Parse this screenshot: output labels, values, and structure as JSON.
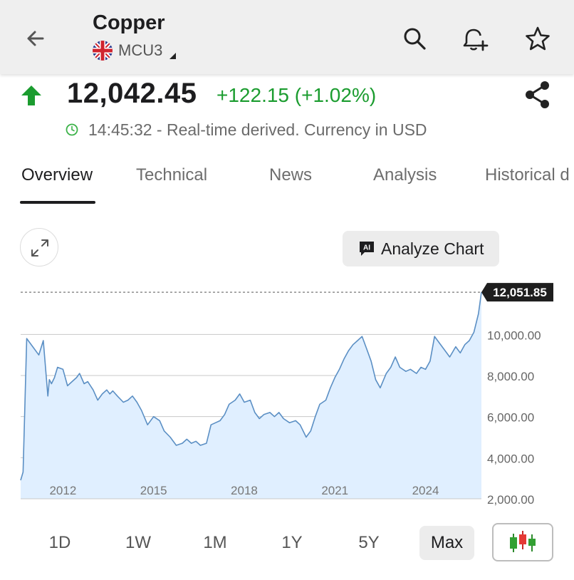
{
  "header": {
    "title": "Copper",
    "symbol": "MCU3"
  },
  "quote": {
    "price": "12,042.45",
    "change": "+122.15 (+1.02%)",
    "status": "14:45:32 - Real-time derived. Currency in USD",
    "direction": "up",
    "up_color": "#1b9c2f"
  },
  "tabs": [
    {
      "label": "Overview",
      "active": true
    },
    {
      "label": "Technical",
      "active": false
    },
    {
      "label": "News",
      "active": false
    },
    {
      "label": "Analysis",
      "active": false
    },
    {
      "label": "Historical d",
      "active": false
    }
  ],
  "chart_tools": {
    "analyze_label": "Analyze Chart",
    "ai_badge": "AI"
  },
  "chart_data": {
    "type": "area",
    "current_value_label": "12,051.85",
    "current_value": 12051.85,
    "ylim": [
      2000,
      12300
    ],
    "y_ticks": [
      10000,
      8000,
      6000,
      4000,
      2000
    ],
    "y_tick_labels": [
      "10,000.00",
      "8,000.00",
      "6,000.00",
      "4,000.00",
      "2,000.00"
    ],
    "x_ticks": [
      2012,
      2015,
      2018,
      2021,
      2024
    ],
    "x_tick_labels": [
      "2012",
      "2015",
      "2018",
      "2021",
      "2024"
    ],
    "xlim": [
      2010.6,
      2025.85
    ],
    "grid": true,
    "line_color": "#5b8fc4",
    "fill_color": "#e0efff",
    "x": [
      2010.6,
      2010.68,
      2010.8,
      2011.0,
      2011.2,
      2011.35,
      2011.5,
      2011.55,
      2011.62,
      2011.72,
      2011.82,
      2012.0,
      2012.15,
      2012.3,
      2012.45,
      2012.55,
      2012.7,
      2012.82,
      2013.0,
      2013.15,
      2013.3,
      2013.45,
      2013.55,
      2013.65,
      2013.8,
      2014.0,
      2014.15,
      2014.3,
      2014.45,
      2014.6,
      2014.8,
      2015.0,
      2015.2,
      2015.35,
      2015.55,
      2015.75,
      2015.95,
      2016.1,
      2016.25,
      2016.4,
      2016.55,
      2016.75,
      2016.9,
      2017.05,
      2017.2,
      2017.35,
      2017.5,
      2017.7,
      2017.85,
      2018.0,
      2018.2,
      2018.35,
      2018.5,
      2018.65,
      2018.85,
      2019.0,
      2019.15,
      2019.3,
      2019.5,
      2019.7,
      2019.85,
      2020.05,
      2020.2,
      2020.35,
      2020.5,
      2020.7,
      2020.85,
      2021.0,
      2021.15,
      2021.3,
      2021.45,
      2021.6,
      2021.75,
      2021.9,
      2022.05,
      2022.2,
      2022.35,
      2022.5,
      2022.7,
      2022.85,
      2023.0,
      2023.15,
      2023.35,
      2023.5,
      2023.7,
      2023.85,
      2024.0,
      2024.15,
      2024.3,
      2024.45,
      2024.6,
      2024.8,
      2025.0,
      2025.15,
      2025.3,
      2025.45,
      2025.6,
      2025.75,
      2025.85
    ],
    "y": [
      2900,
      3300,
      9800,
      9400,
      9000,
      9700,
      7000,
      7800,
      7600,
      7900,
      8400,
      8300,
      7500,
      7700,
      7900,
      8100,
      7600,
      7700,
      7300,
      6800,
      7100,
      7300,
      7100,
      7250,
      7000,
      6700,
      6800,
      7000,
      6700,
      6300,
      5600,
      6000,
      5800,
      5300,
      5000,
      4600,
      4700,
      4900,
      4700,
      4800,
      4600,
      4700,
      5600,
      5700,
      5800,
      6100,
      6600,
      6800,
      7100,
      6700,
      6800,
      6200,
      5900,
      6100,
      6200,
      6000,
      6200,
      5900,
      5700,
      5800,
      5600,
      5000,
      5300,
      6000,
      6600,
      6800,
      7400,
      7900,
      8300,
      8800,
      9200,
      9500,
      9700,
      9900,
      9300,
      8700,
      7800,
      7400,
      8100,
      8400,
      8900,
      8400,
      8200,
      8300,
      8100,
      8400,
      8300,
      8700,
      9900,
      9600,
      9300,
      8900,
      9400,
      9100,
      9500,
      9700,
      10100,
      11000,
      12051.85
    ]
  },
  "ranges": [
    {
      "label": "1D",
      "active": false
    },
    {
      "label": "1W",
      "active": false
    },
    {
      "label": "1M",
      "active": false
    },
    {
      "label": "1Y",
      "active": false
    },
    {
      "label": "5Y",
      "active": false
    },
    {
      "label": "Max",
      "active": true
    }
  ],
  "icons": {
    "back": "arrow-left-icon",
    "search": "search-icon",
    "alert": "bell-plus-icon",
    "favorite": "star-icon",
    "share": "share-icon",
    "expand": "expand-icon",
    "chart_type": "candlestick-icon"
  }
}
